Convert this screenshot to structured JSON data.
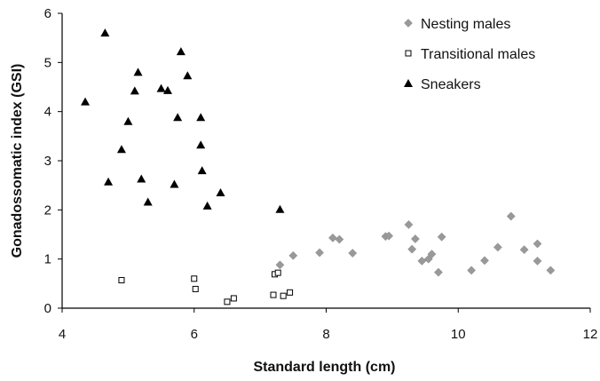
{
  "chart_data": {
    "type": "scatter",
    "title": "",
    "xlabel": "Standard length (cm)",
    "ylabel": "Gonadossomatic index (GSI)",
    "xlim": [
      4,
      12
    ],
    "ylim": [
      0,
      6
    ],
    "x_ticks": [
      "4",
      "6",
      "8",
      "10",
      "12"
    ],
    "y_ticks": [
      "0",
      "1",
      "2",
      "3",
      "4",
      "5",
      "6"
    ],
    "grid": false,
    "legend_position": "top-right",
    "series": [
      {
        "name": "Nesting males",
        "marker": "diamond",
        "color": "#999999",
        "points": [
          [
            7.3,
            0.88
          ],
          [
            7.5,
            1.07
          ],
          [
            7.9,
            1.13
          ],
          [
            8.1,
            1.43
          ],
          [
            8.2,
            1.4
          ],
          [
            8.4,
            1.12
          ],
          [
            8.9,
            1.46
          ],
          [
            8.95,
            1.47
          ],
          [
            9.25,
            1.7
          ],
          [
            9.3,
            1.2
          ],
          [
            9.35,
            1.41
          ],
          [
            9.45,
            0.96
          ],
          [
            9.55,
            1.0
          ],
          [
            9.6,
            1.1
          ],
          [
            9.7,
            0.73
          ],
          [
            9.75,
            1.45
          ],
          [
            10.2,
            0.77
          ],
          [
            10.4,
            0.97
          ],
          [
            10.6,
            1.24
          ],
          [
            10.8,
            1.87
          ],
          [
            11.0,
            1.19
          ],
          [
            11.2,
            1.31
          ],
          [
            11.2,
            0.96
          ],
          [
            11.4,
            0.77
          ]
        ]
      },
      {
        "name": "Transitional males",
        "marker": "square-open",
        "color": "#000000",
        "points": [
          [
            4.9,
            0.57
          ],
          [
            6.0,
            0.6
          ],
          [
            6.02,
            0.39
          ],
          [
            6.5,
            0.13
          ],
          [
            6.6,
            0.2
          ],
          [
            7.2,
            0.27
          ],
          [
            7.22,
            0.69
          ],
          [
            7.27,
            0.72
          ],
          [
            7.35,
            0.25
          ],
          [
            7.45,
            0.32
          ]
        ]
      },
      {
        "name": "Sneakers",
        "marker": "triangle",
        "color": "#000000",
        "points": [
          [
            4.35,
            4.2
          ],
          [
            4.65,
            5.6
          ],
          [
            4.7,
            2.57
          ],
          [
            4.9,
            3.23
          ],
          [
            5.0,
            3.8
          ],
          [
            5.1,
            4.42
          ],
          [
            5.15,
            4.8
          ],
          [
            5.2,
            2.63
          ],
          [
            5.3,
            2.16
          ],
          [
            5.5,
            4.47
          ],
          [
            5.6,
            4.43
          ],
          [
            5.7,
            2.52
          ],
          [
            5.75,
            3.88
          ],
          [
            5.8,
            5.22
          ],
          [
            5.9,
            4.73
          ],
          [
            6.1,
            3.88
          ],
          [
            6.1,
            3.32
          ],
          [
            6.12,
            2.8
          ],
          [
            6.2,
            2.08
          ],
          [
            6.4,
            2.35
          ],
          [
            7.3,
            2.01
          ]
        ]
      }
    ]
  }
}
